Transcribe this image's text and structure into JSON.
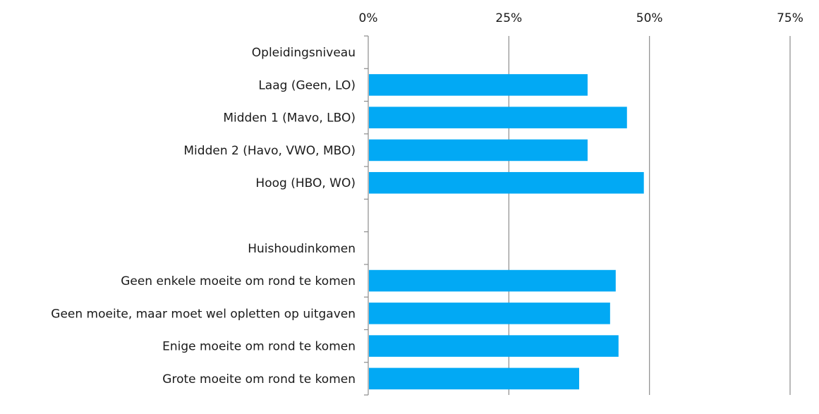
{
  "chart_data": {
    "type": "bar",
    "orientation": "horizontal",
    "xlim": [
      0,
      75
    ],
    "x_ticks": [
      0,
      25,
      50,
      75
    ],
    "x_tick_labels": [
      "0%",
      "25%",
      "50%",
      "75%"
    ],
    "x_axis_position": "top",
    "grid": "vertical",
    "bar_color": "#02A9F4",
    "categories": [
      "Opleidingsniveau",
      "Laag (Geen, LO)",
      "Midden 1 (Mavo, LBO)",
      "Midden 2 (Havo, VWO, MBO)",
      "Hoog (HBO, WO)",
      "",
      "Huishoudinkomen",
      "Geen enkele moeite om rond te komen",
      "Geen moeite, maar moet wel opletten op uitgaven",
      "Enige moeite om rond te komen",
      "Grote moeite om rond te komen"
    ],
    "values": [
      null,
      39,
      46,
      39,
      49,
      null,
      null,
      44,
      43,
      44.5,
      37.5
    ],
    "title": "",
    "xlabel": "",
    "ylabel": ""
  }
}
